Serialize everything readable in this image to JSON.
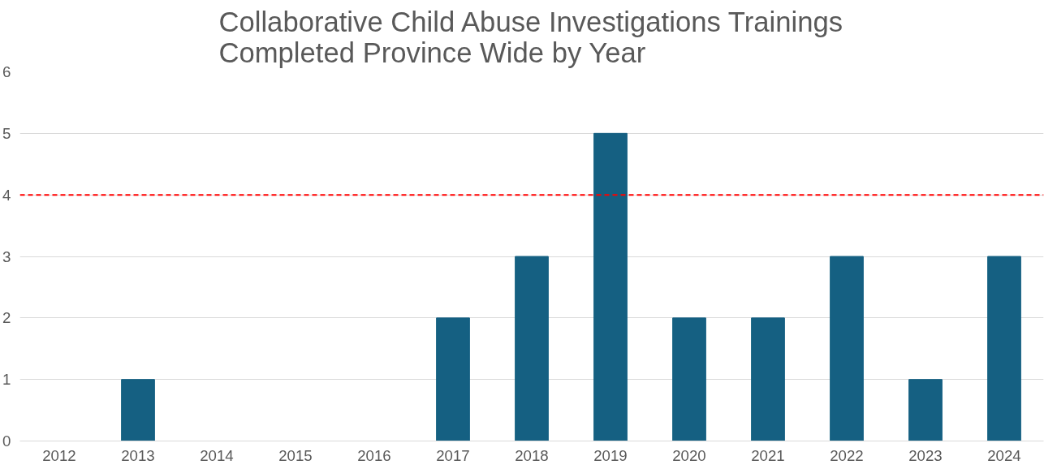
{
  "chart_data": {
    "type": "bar",
    "title": "Collaborative Child Abuse Investigations Trainings\nCompleted Province Wide by Year",
    "categories": [
      "2012",
      "2013",
      "2014",
      "2015",
      "2016",
      "2017",
      "2018",
      "2019",
      "2020",
      "2021",
      "2022",
      "2023",
      "2024"
    ],
    "values": [
      0,
      1,
      0,
      0,
      0,
      2,
      3,
      5,
      2,
      2,
      3,
      1,
      3
    ],
    "color": "#156082",
    "ylim": [
      0,
      6
    ],
    "yticks": [
      0,
      1,
      2,
      3,
      4,
      5,
      6
    ],
    "grid": "y",
    "ref_lines": [
      {
        "axis": "y",
        "value": 4,
        "color": "#ff0000",
        "line_style": "dashed"
      }
    ]
  }
}
